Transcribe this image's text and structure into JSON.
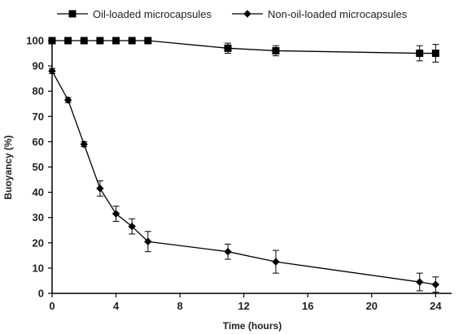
{
  "chart_data": {
    "type": "line",
    "xlabel": "Time (hours)",
    "ylabel": "Buoyancy  (%)",
    "xlim": [
      0,
      25
    ],
    "ylim": [
      0,
      100
    ],
    "xticks": [
      0,
      4,
      8,
      12,
      16,
      20,
      24
    ],
    "yticks": [
      0,
      10,
      20,
      30,
      40,
      50,
      60,
      70,
      80,
      90,
      100
    ],
    "grid": false,
    "legend_position": "top",
    "series": [
      {
        "name": "Oil-loaded microcapsules",
        "marker": "square",
        "color": "#000000",
        "points": [
          {
            "x": 0,
            "y": 100,
            "err": 0
          },
          {
            "x": 1,
            "y": 100,
            "err": 0
          },
          {
            "x": 2,
            "y": 100,
            "err": 0
          },
          {
            "x": 3,
            "y": 100,
            "err": 0
          },
          {
            "x": 4,
            "y": 100,
            "err": 0
          },
          {
            "x": 5,
            "y": 100,
            "err": 0
          },
          {
            "x": 6,
            "y": 100,
            "err": 0
          },
          {
            "x": 11,
            "y": 97,
            "err": 2
          },
          {
            "x": 14,
            "y": 96,
            "err": 2
          },
          {
            "x": 23,
            "y": 95,
            "err": 3
          },
          {
            "x": 24,
            "y": 95,
            "err": 3.5
          }
        ]
      },
      {
        "name": "Non-oil-loaded microcapsules",
        "marker": "diamond",
        "color": "#000000",
        "points": [
          {
            "x": 0,
            "y": 88,
            "err": 1
          },
          {
            "x": 1,
            "y": 76.5,
            "err": 1
          },
          {
            "x": 2,
            "y": 59,
            "err": 1
          },
          {
            "x": 3,
            "y": 41.5,
            "err": 3
          },
          {
            "x": 4,
            "y": 31.5,
            "err": 3
          },
          {
            "x": 5,
            "y": 26.5,
            "err": 3
          },
          {
            "x": 6,
            "y": 20.5,
            "err": 4
          },
          {
            "x": 11,
            "y": 16.5,
            "err": 3
          },
          {
            "x": 14,
            "y": 12.5,
            "err": 4.5
          },
          {
            "x": 23,
            "y": 4.5,
            "err": 3.5
          },
          {
            "x": 24,
            "y": 3.5,
            "err": 3
          }
        ]
      }
    ]
  }
}
